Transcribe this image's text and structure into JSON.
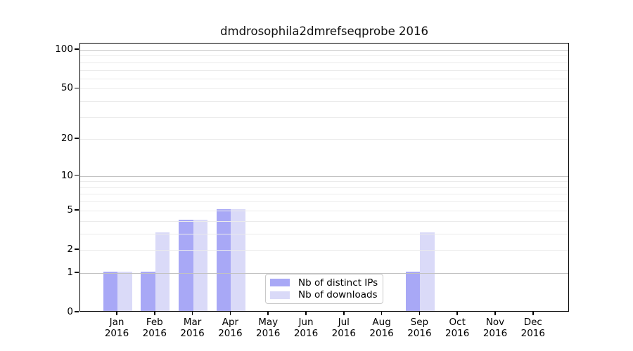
{
  "title": "dmdrosophila2dmrefseqprobe 2016",
  "legend": {
    "items": [
      {
        "label": "Nb of distinct IPs",
        "color": "#a8a8f6"
      },
      {
        "label": "Nb of downloads",
        "color": "#dadaf8"
      }
    ]
  },
  "chart_data": {
    "type": "bar",
    "title": "dmdrosophila2dmrefseqprobe 2016",
    "categories": [
      "Jan",
      "Feb",
      "Mar",
      "Apr",
      "May",
      "Jun",
      "Jul",
      "Aug",
      "Sep",
      "Oct",
      "Nov",
      "Dec"
    ],
    "category_year": "2016",
    "series": [
      {
        "name": "Nb of distinct IPs",
        "color": "#a8a8f6",
        "values": [
          1,
          1,
          4,
          5,
          0,
          0,
          0,
          0,
          1,
          0,
          0,
          0
        ]
      },
      {
        "name": "Nb of downloads",
        "color": "#dadaf8",
        "values": [
          1,
          3,
          4,
          5,
          0,
          0,
          0,
          0,
          3,
          0,
          0,
          0
        ]
      }
    ],
    "xlabel": "",
    "ylabel": "",
    "yscale": "log10(1+y)",
    "ylim": [
      0,
      112
    ],
    "yticks": [
      0,
      1,
      2,
      5,
      10,
      20,
      50,
      100
    ],
    "grid": "on",
    "gridlines_major": [
      1,
      10,
      100
    ],
    "gridlines_minor": [
      2,
      3,
      4,
      5,
      6,
      7,
      8,
      9,
      20,
      30,
      40,
      50,
      60,
      70,
      80,
      90
    ],
    "grid_major_color": "#c2c2c2",
    "grid_minor_color": "#ebebeb",
    "legend_position": "inside lower-center"
  }
}
